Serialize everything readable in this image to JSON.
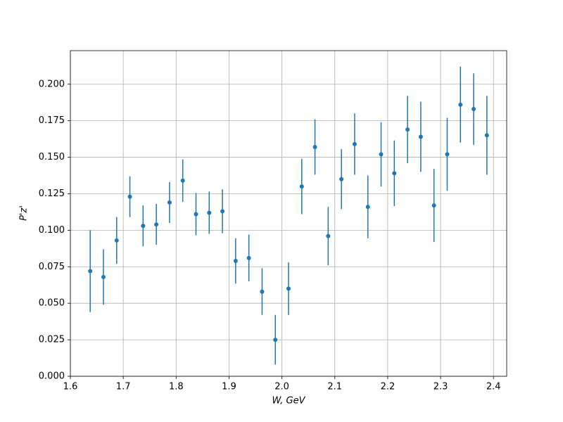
{
  "chart_data": {
    "type": "errorbar",
    "xlabel": "W, GeV",
    "ylabel": "P'z'",
    "x": [
      1.6375,
      1.6625,
      1.6875,
      1.7125,
      1.7375,
      1.7625,
      1.7875,
      1.8125,
      1.8375,
      1.8625,
      1.8875,
      1.9125,
      1.9375,
      1.9625,
      1.9875,
      2.0125,
      2.0375,
      2.0625,
      2.0875,
      2.1125,
      2.1375,
      2.1625,
      2.1875,
      2.2125,
      2.2375,
      2.2625,
      2.2875,
      2.3125,
      2.3375,
      2.3625,
      2.3875
    ],
    "values": [
      0.072,
      0.068,
      0.093,
      0.123,
      0.103,
      0.104,
      0.119,
      0.134,
      0.111,
      0.112,
      0.113,
      0.079,
      0.081,
      0.058,
      0.025,
      0.06,
      0.13,
      0.157,
      0.096,
      0.135,
      0.159,
      0.116,
      0.152,
      0.139,
      0.169,
      0.164,
      0.117,
      0.152,
      0.186,
      0.183,
      0.165
    ],
    "errors": [
      0.028,
      0.019,
      0.016,
      0.014,
      0.014,
      0.014,
      0.014,
      0.0145,
      0.0145,
      0.0145,
      0.015,
      0.0155,
      0.016,
      0.016,
      0.017,
      0.018,
      0.019,
      0.019,
      0.02,
      0.0205,
      0.021,
      0.0215,
      0.022,
      0.0225,
      0.023,
      0.024,
      0.025,
      0.025,
      0.026,
      0.0245,
      0.027
    ],
    "color": "#1f77b4",
    "xlim": [
      1.6,
      2.425
    ],
    "xticks": [
      1.6,
      1.7,
      1.8,
      1.9,
      {
        "value": 2,
        "label": "2.0"
      },
      2.1,
      2.2,
      2.3,
      2.4
    ],
    "ylim": [
      0,
      0.223
    ],
    "yticks": [
      {
        "value": 0,
        "label": "0.000"
      },
      {
        "value": 0.025,
        "label": "0.025"
      },
      {
        "value": 0.05,
        "label": "0.050"
      },
      {
        "value": 0.075,
        "label": "0.075"
      },
      {
        "value": 0.1,
        "label": "0.100"
      },
      {
        "value": 0.125,
        "label": "0.125"
      },
      {
        "value": 0.15,
        "label": "0.150"
      },
      {
        "value": 0.175,
        "label": "0.175"
      },
      {
        "value": 0.2,
        "label": "0.200"
      }
    ],
    "grid": true
  }
}
